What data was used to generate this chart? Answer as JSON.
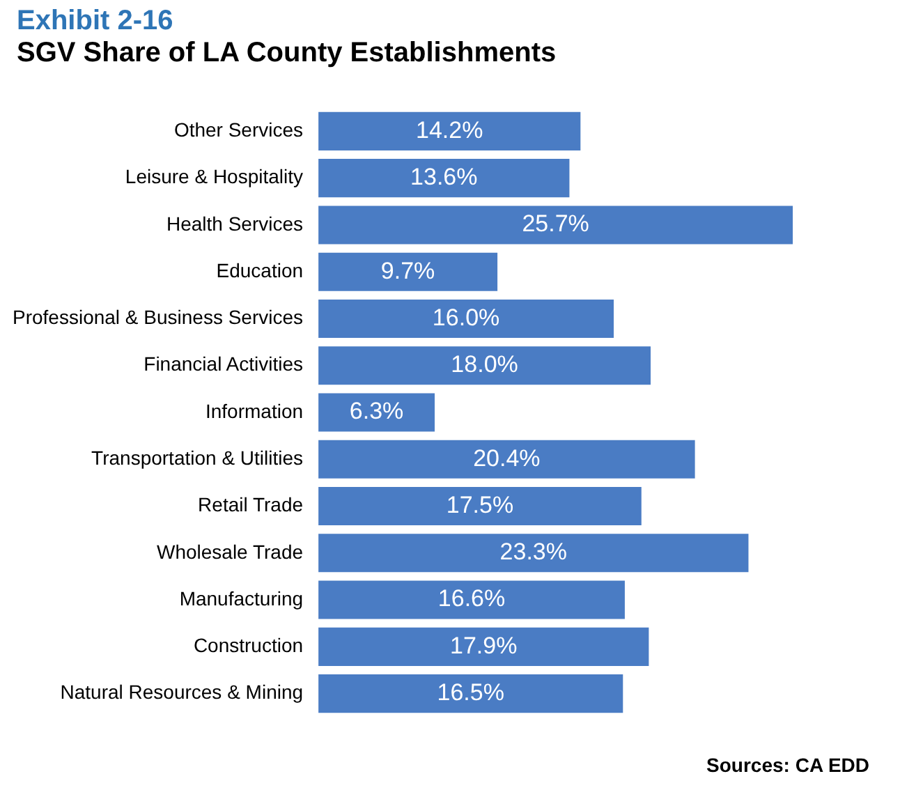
{
  "chart_data": {
    "type": "bar",
    "orientation": "horizontal",
    "title": "Exhibit 2-16",
    "subtitle": "SGV Share of LA County Establishments",
    "categories": [
      "Other Services",
      "Leisure & Hospitality",
      "Health Services",
      "Education",
      "Professional & Business Services",
      "Financial Activities",
      "Information",
      "Transportation & Utilities",
      "Retail Trade",
      "Wholesale Trade",
      "Manufacturing",
      "Construction",
      "Natural Resources & Mining"
    ],
    "values": [
      14.2,
      13.6,
      25.7,
      9.7,
      16.0,
      18.0,
      6.3,
      20.4,
      17.5,
      23.3,
      16.6,
      17.9,
      16.5
    ],
    "value_labels": [
      "14.2%",
      "13.6%",
      "25.7%",
      "9.7%",
      "16.0%",
      "18.0%",
      "6.3%",
      "20.4%",
      "17.5%",
      "23.3%",
      "16.6%",
      "17.9%",
      "16.5%"
    ],
    "color": "#4a7cc4",
    "grid": false,
    "legend": false,
    "tick_labels": "y",
    "annotations": [
      "Sources: CA EDD"
    ]
  }
}
